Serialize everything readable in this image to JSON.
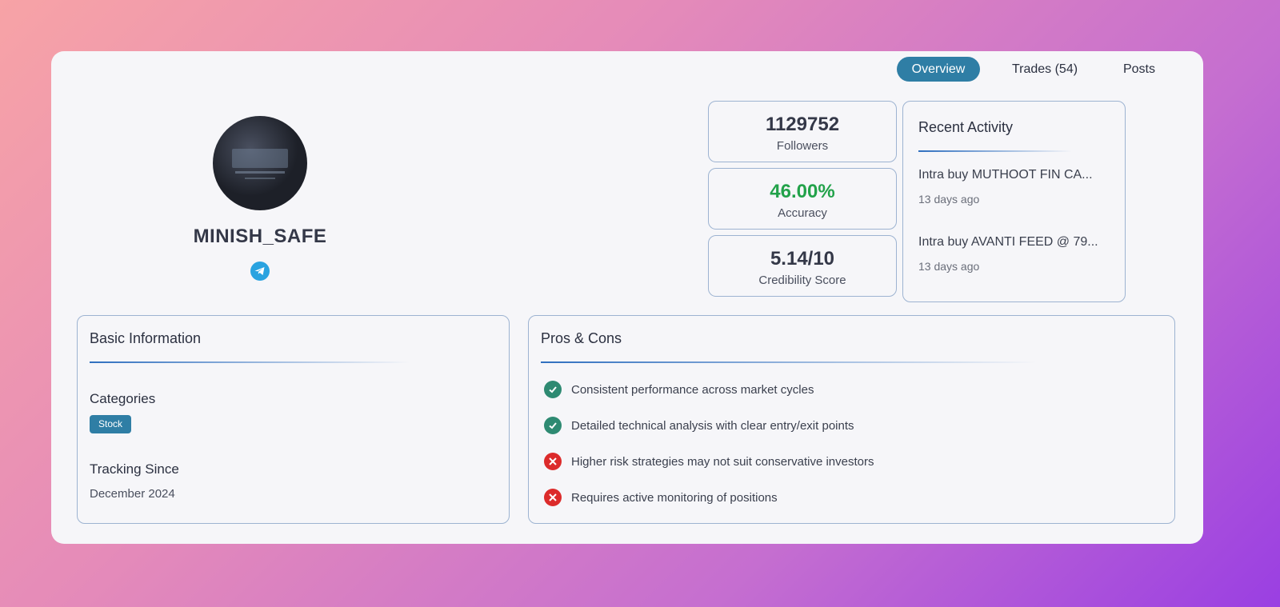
{
  "tabs": [
    "Overview",
    "Trades (54)",
    "Posts"
  ],
  "profile": {
    "name": "MINISH_SAFE"
  },
  "stats": [
    {
      "value": 1129752,
      "label": "Followers"
    },
    {
      "value": "46.00%",
      "label": "Accuracy"
    },
    {
      "value": "5.14/10",
      "label": "Credibility Score"
    }
  ],
  "recent_activity": {
    "title": "Recent Activity",
    "items": [
      {
        "text": "Intra buy MUTHOOT FIN CA...",
        "time": "13 days ago"
      },
      {
        "text": "Intra buy AVANTI FEED @ 79...",
        "time": "13 days ago"
      }
    ]
  },
  "basic_information": {
    "title": "Basic Information",
    "categories_label": "Categories",
    "categories": [
      "Stock"
    ],
    "tracking_label": "Tracking Since",
    "tracking_since": "December 2024"
  },
  "pros_cons": {
    "title": "Pros & Cons",
    "pros": [
      "Consistent performance across market cycles",
      "Detailed technical analysis with clear entry/exit points"
    ],
    "cons": [
      "Higher risk strategies may not suit conservative investors",
      "Requires active monitoring of positions"
    ]
  }
}
